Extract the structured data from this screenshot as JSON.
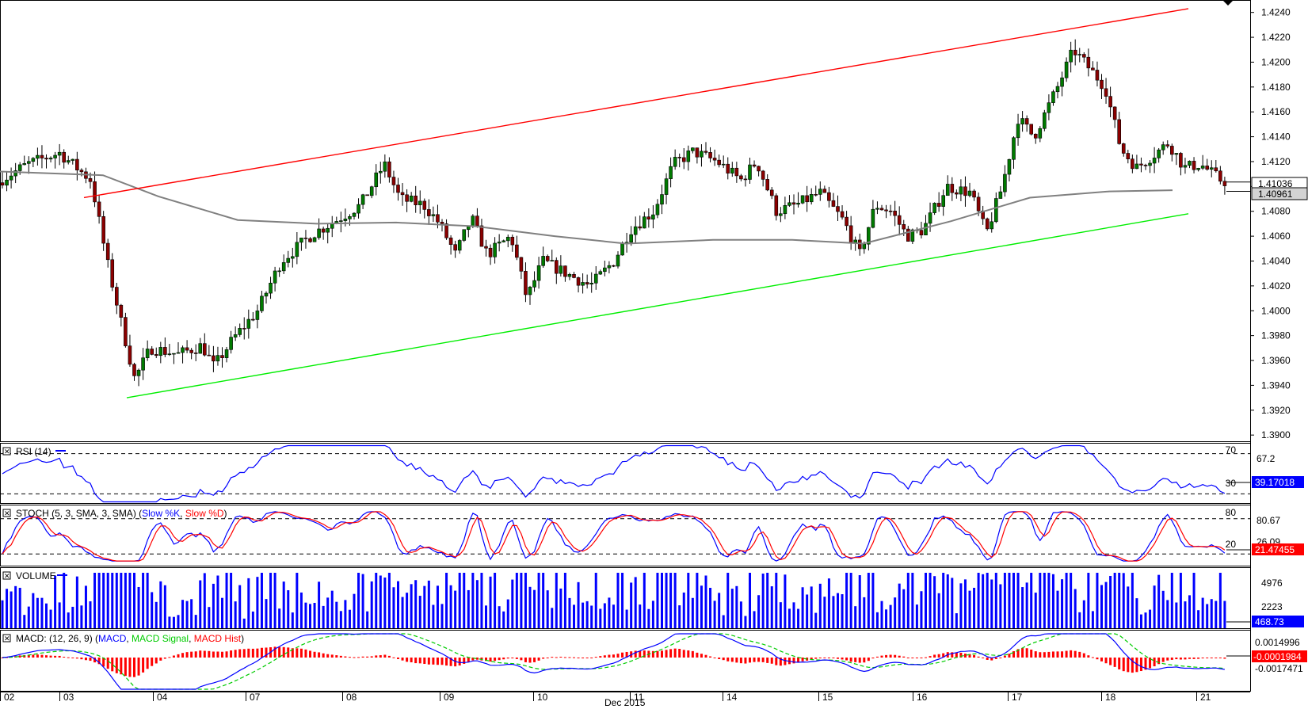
{
  "chart_data": [
    {
      "type": "candlestick",
      "panel": "price",
      "ylim": [
        1.3895,
        1.425
      ],
      "y_ticks": [
        "1.4240",
        "1.4220",
        "1.4200",
        "1.4180",
        "1.4160",
        "1.4140",
        "1.4120",
        "1.4100",
        "1.4080",
        "1.4060",
        "1.4040",
        "1.4020",
        "1.4000",
        "1.3980",
        "1.3960",
        "1.3940",
        "1.3920",
        "1.3900"
      ],
      "price_labels": {
        "last": "1.41036",
        "ma": "1.40961"
      },
      "moving_average": {
        "color": "#808080",
        "points": [
          [
            0,
            1.4112
          ],
          [
            130,
            1.4109
          ],
          [
            200,
            1.4092
          ],
          [
            300,
            1.4073
          ],
          [
            400,
            1.407
          ],
          [
            500,
            1.4071
          ],
          [
            600,
            1.4068
          ],
          [
            700,
            1.406
          ],
          [
            790,
            1.4054
          ],
          [
            900,
            1.4057
          ],
          [
            1000,
            1.4057
          ],
          [
            1090,
            1.4054
          ],
          [
            1200,
            1.4072
          ],
          [
            1300,
            1.4091
          ],
          [
            1400,
            1.4096
          ],
          [
            1480,
            1.4097
          ]
        ]
      },
      "trendlines": [
        {
          "color": "#ff0000",
          "from": [
            106,
            1.4091
          ],
          "to": [
            1500,
            1.4243
          ]
        },
        {
          "color": "#00ee00",
          "from": [
            160,
            1.393
          ],
          "to": [
            1500,
            1.4078
          ]
        }
      ],
      "candles": {
        "bull_color": "#007a00",
        "bear_color": "#8b0000"
      },
      "x_ticks": [
        "02",
        "03",
        "04",
        "07",
        "08",
        "09",
        "10",
        "11",
        "14",
        "15",
        "16",
        "17",
        "18",
        "21"
      ],
      "month_label": "Dec 2015"
    },
    {
      "type": "line",
      "panel": "rsi",
      "label": "RSI (14)",
      "ylim": [
        20,
        80
      ],
      "levels": [
        70,
        30
      ],
      "level_labels": [
        "70",
        "30"
      ],
      "right_labels": {
        "top": "67.2",
        "current": "39.17018"
      },
      "line_color": "#0000ff"
    },
    {
      "type": "line",
      "panel": "stoch",
      "label_prefix": "STOCH (5, 3, SMA, 3, SMA) (",
      "label_k": "Slow %K",
      "label_d": "Slow %D",
      "label_suffix": ")",
      "ylim": [
        0,
        100
      ],
      "levels": [
        80,
        20
      ],
      "level_labels": [
        "80",
        "20"
      ],
      "right_labels": {
        "top": "80.67",
        "hidden": "26.09",
        "current": "21.47455"
      },
      "k_color": "#0000ff",
      "d_color": "#ff0000"
    },
    {
      "type": "bar",
      "panel": "volume",
      "label": "VOLUME",
      "right_labels": {
        "top": "4976",
        "mid": "2223",
        "current": "468.73"
      },
      "bar_color": "#0000ff"
    },
    {
      "type": "bar",
      "panel": "macd",
      "label_prefix": "MACD: (12, 26, 9) (",
      "label_macd": "MACD",
      "label_signal": "MACD Signal",
      "label_hist": "MACD Hist",
      "label_suffix": ")",
      "right_labels": {
        "top": "0.0014996",
        "current": "-0.0001984",
        "bottom": "-0.0017471"
      },
      "macd_color": "#0000ff",
      "signal_color": "#00cc00",
      "hist_color": "#ff0000"
    }
  ]
}
